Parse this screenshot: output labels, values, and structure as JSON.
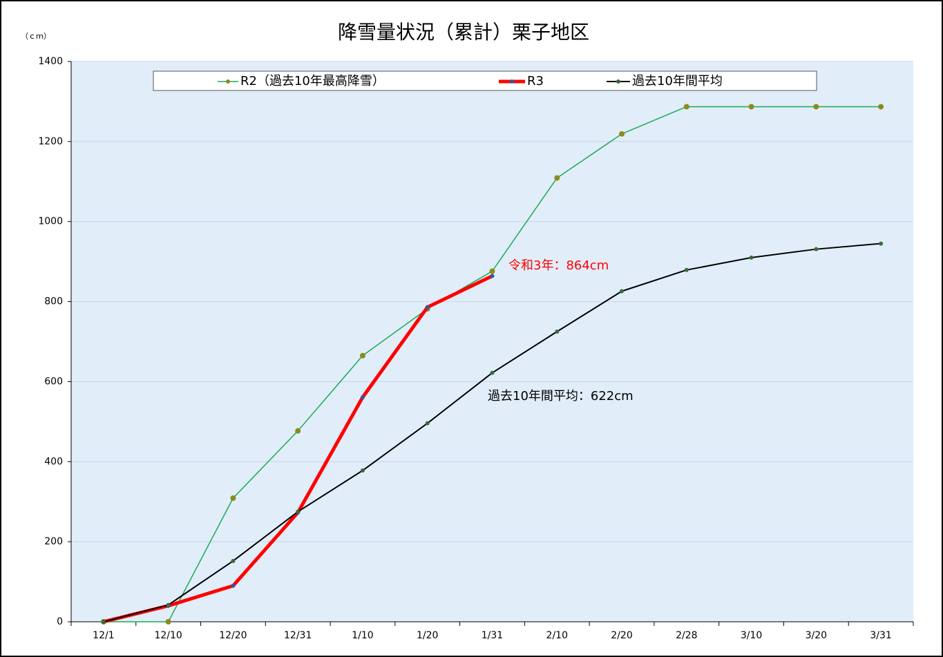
{
  "chart_data": {
    "type": "line",
    "title": "降雪量状況（累計）栗子地区",
    "y_label": "（ｃｍ）",
    "categories": [
      "12/1",
      "12/10",
      "12/20",
      "12/31",
      "1/10",
      "1/20",
      "1/31",
      "2/10",
      "2/20",
      "2/28",
      "3/10",
      "3/20",
      "3/31"
    ],
    "series": [
      {
        "name": "R2（過去10年最高降雪）",
        "color": "#1aaa55",
        "marker_color": "#8b8b1a",
        "line_width": 1.5,
        "values": [
          0,
          0,
          309,
          477,
          665,
          782,
          876,
          1109,
          1219,
          1287,
          1287,
          1287,
          1287
        ]
      },
      {
        "name": "R3",
        "color": "#ff0000",
        "marker_color": "#3355aa",
        "line_width": 5,
        "values": [
          0,
          40,
          90,
          273,
          561,
          786,
          864,
          null,
          null,
          null,
          null,
          null,
          null
        ]
      },
      {
        "name": "過去10年間平均",
        "color": "#000000",
        "marker_color": "#3a6a3a",
        "line_width": 2,
        "values": [
          0,
          42,
          152,
          275,
          378,
          496,
          622,
          725,
          826,
          879,
          910,
          931,
          945
        ]
      }
    ],
    "annotations": [
      {
        "text": "令和3年：864cm",
        "color": "#ff0000"
      },
      {
        "text": "過去10年間平均：622cm",
        "color": "#000000"
      }
    ],
    "ylim": [
      0,
      1400
    ],
    "yticks": [
      0,
      200,
      400,
      600,
      800,
      1000,
      1200,
      1400
    ],
    "grid": true,
    "legend": "top"
  }
}
